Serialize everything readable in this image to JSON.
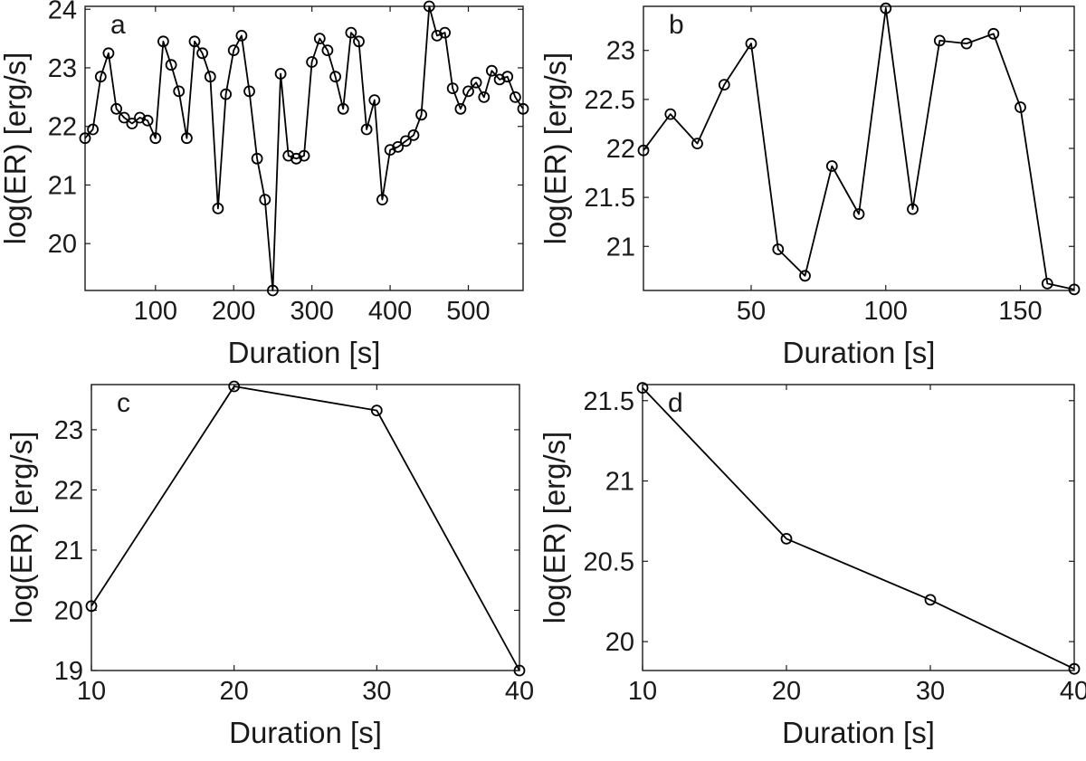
{
  "colors": {
    "line": "#000000",
    "axis": "#1a1a1a",
    "background": "#ffffff"
  },
  "chart_data": [
    {
      "panel": "a",
      "type": "line",
      "xlabel": "Duration [s]",
      "ylabel": "log(ER) [erg/s]",
      "xlim": [
        10,
        570
      ],
      "ylim": [
        19.2,
        24.05
      ],
      "xticks": [
        100,
        200,
        300,
        400,
        500
      ],
      "yticks": [
        20,
        21,
        22,
        23,
        24
      ],
      "grid": false,
      "marker": "open-circle",
      "x": [
        10,
        20,
        30,
        40,
        50,
        60,
        70,
        80,
        90,
        100,
        110,
        120,
        130,
        140,
        150,
        160,
        170,
        180,
        190,
        200,
        210,
        220,
        230,
        240,
        250,
        260,
        270,
        280,
        290,
        300,
        310,
        320,
        330,
        340,
        350,
        360,
        370,
        380,
        390,
        400,
        410,
        420,
        430,
        440,
        450,
        460,
        470,
        480,
        490,
        500,
        510,
        520,
        530,
        540,
        550,
        560,
        570
      ],
      "y": [
        21.8,
        21.95,
        22.85,
        23.25,
        22.3,
        22.15,
        22.05,
        22.15,
        22.1,
        21.8,
        23.45,
        23.05,
        22.6,
        21.8,
        23.45,
        23.25,
        22.85,
        20.6,
        22.55,
        23.3,
        23.55,
        22.6,
        21.45,
        20.75,
        19.2,
        22.9,
        21.5,
        21.45,
        21.5,
        23.1,
        23.5,
        23.3,
        22.85,
        22.3,
        23.6,
        23.45,
        21.95,
        22.45,
        20.75,
        21.6,
        21.65,
        21.75,
        21.85,
        22.2,
        24.05,
        23.55,
        23.6,
        22.65,
        22.3,
        22.6,
        22.75,
        22.5,
        22.95,
        22.8,
        22.85,
        22.5,
        22.3
      ]
    },
    {
      "panel": "b",
      "type": "line",
      "xlabel": "Duration [s]",
      "ylabel": "log(ER) [erg/s]",
      "xlim": [
        10,
        170
      ],
      "ylim": [
        20.55,
        23.45
      ],
      "xticks": [
        50,
        100,
        150
      ],
      "yticks": [
        21,
        21.5,
        22,
        22.5,
        23
      ],
      "grid": false,
      "marker": "open-circle",
      "x": [
        10,
        20,
        30,
        40,
        50,
        60,
        70,
        80,
        90,
        100,
        110,
        120,
        130,
        140,
        150,
        160,
        170
      ],
      "y": [
        21.98,
        22.35,
        22.05,
        22.65,
        23.07,
        20.97,
        20.7,
        21.82,
        21.33,
        23.43,
        21.38,
        23.1,
        23.07,
        23.17,
        22.42,
        20.62,
        20.56
      ]
    },
    {
      "panel": "c",
      "type": "line",
      "xlabel": "Duration [s]",
      "ylabel": "log(ER) [erg/s]",
      "xlim": [
        10,
        40
      ],
      "ylim": [
        19,
        23.75
      ],
      "xticks": [
        10,
        20,
        30,
        40
      ],
      "yticks": [
        19,
        20,
        21,
        22,
        23
      ],
      "grid": false,
      "marker": "open-circle",
      "x": [
        10,
        20,
        30,
        40
      ],
      "y": [
        20.07,
        23.72,
        23.32,
        19.0
      ]
    },
    {
      "panel": "d",
      "type": "line",
      "xlabel": "Duration [s]",
      "ylabel": "log(ER) [erg/s]",
      "xlim": [
        10,
        40
      ],
      "ylim": [
        19.82,
        21.6
      ],
      "xticks": [
        10,
        20,
        30,
        40
      ],
      "yticks": [
        20,
        20.5,
        21,
        21.5
      ],
      "grid": false,
      "marker": "open-circle",
      "x": [
        10,
        20,
        30,
        40
      ],
      "y": [
        21.58,
        20.64,
        20.26,
        19.83
      ]
    }
  ]
}
